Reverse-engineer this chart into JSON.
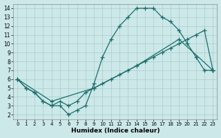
{
  "xlabel": "Humidex (Indice chaleur)",
  "bg_color": "#cce8e8",
  "grid_color": "#aacccc",
  "line_color": "#1a6b6b",
  "xlim": [
    -0.5,
    23.5
  ],
  "ylim": [
    1.5,
    14.5
  ],
  "xticks": [
    0,
    1,
    2,
    3,
    4,
    5,
    6,
    7,
    8,
    9,
    10,
    11,
    12,
    13,
    14,
    15,
    16,
    17,
    18,
    19,
    20,
    21,
    22,
    23
  ],
  "yticks": [
    2,
    3,
    4,
    5,
    6,
    7,
    8,
    9,
    10,
    11,
    12,
    13,
    14
  ],
  "curve1_x": [
    0,
    1,
    2,
    3,
    4,
    5,
    6,
    7,
    8,
    9,
    10,
    11,
    12,
    13,
    14,
    15,
    16,
    17,
    18,
    19,
    20,
    21,
    22,
    23
  ],
  "curve1_y": [
    6.0,
    5.0,
    4.5,
    3.5,
    3.0,
    3.0,
    2.0,
    2.5,
    3.0,
    5.5,
    8.5,
    10.5,
    12.0,
    13.0,
    14.0,
    14.0,
    14.0,
    13.0,
    12.5,
    11.5,
    10.0,
    8.5,
    7.0,
    7.0
  ],
  "curve2_x": [
    0,
    1,
    2,
    3,
    4,
    5,
    6,
    7,
    8,
    9,
    10,
    11,
    12,
    13,
    14,
    15,
    16,
    17,
    18,
    19,
    20,
    21,
    22,
    23
  ],
  "curve2_y": [
    6.0,
    5.0,
    4.5,
    3.5,
    3.0,
    3.5,
    3.0,
    3.5,
    4.5,
    5.0,
    5.5,
    6.0,
    6.5,
    7.0,
    7.5,
    8.0,
    8.5,
    9.0,
    9.5,
    10.0,
    10.5,
    11.0,
    11.5,
    7.0
  ],
  "curve3_x": [
    0,
    4,
    9,
    14,
    19,
    23
  ],
  "curve3_y": [
    6.0,
    3.5,
    5.0,
    7.5,
    10.5,
    7.0
  ]
}
